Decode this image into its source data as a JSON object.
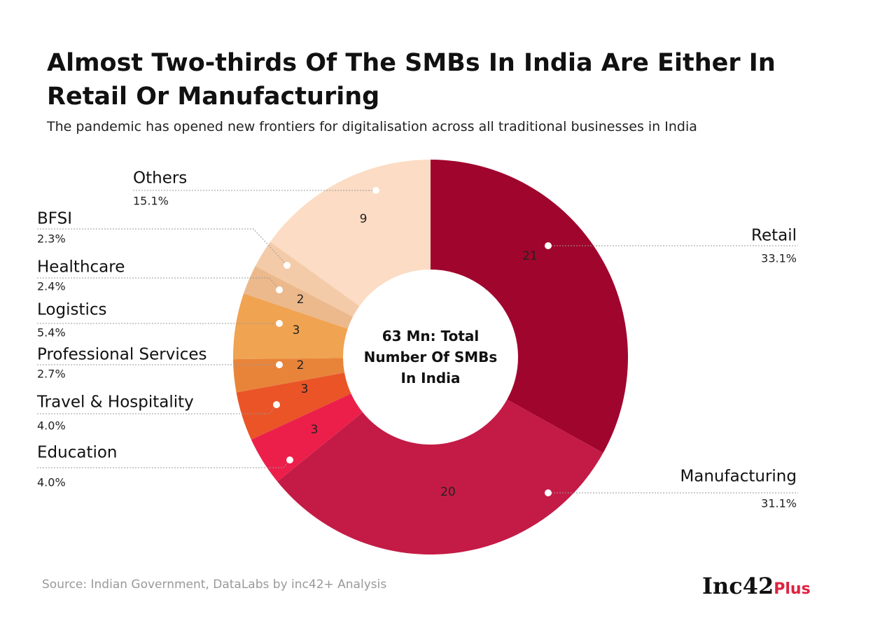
{
  "chart_data": {
    "type": "donut",
    "title": "Almost Two-thirds Of The SMBs In India Are Either In Retail Or Manufacturing",
    "subtitle": "The pandemic has opened new frontiers for digitalisation across all traditional businesses in India",
    "center_label": "63 Mn: Total Number Of SMBs In India",
    "categories": [
      "Retail",
      "Manufacturing",
      "Education",
      "Travel & Hospitality",
      "Professional Services",
      "Logistics",
      "Healthcare",
      "BFSI",
      "Others"
    ],
    "values": [
      33.1,
      31.1,
      4.0,
      4.0,
      2.7,
      5.4,
      2.4,
      2.3,
      15.1
    ],
    "value_labels": [
      "33.1%",
      "31.1%",
      "4.0%",
      "4.0%",
      "2.7%",
      "5.4%",
      "2.4%",
      "2.3%",
      "15.1%"
    ],
    "counts": [
      21,
      20,
      3,
      3,
      2,
      3,
      2,
      null,
      9
    ],
    "colors": [
      "#a0052d",
      "#c41b46",
      "#ec1f4b",
      "#ea5427",
      "#e8843a",
      "#f0a351",
      "#ecb98c",
      "#f4cba8",
      "#fcdcc4"
    ],
    "source": "Source: Indian Government, DataLabs by inc42+ Analysis",
    "logo": {
      "main": "Inc42",
      "suffix": "Plus"
    }
  }
}
